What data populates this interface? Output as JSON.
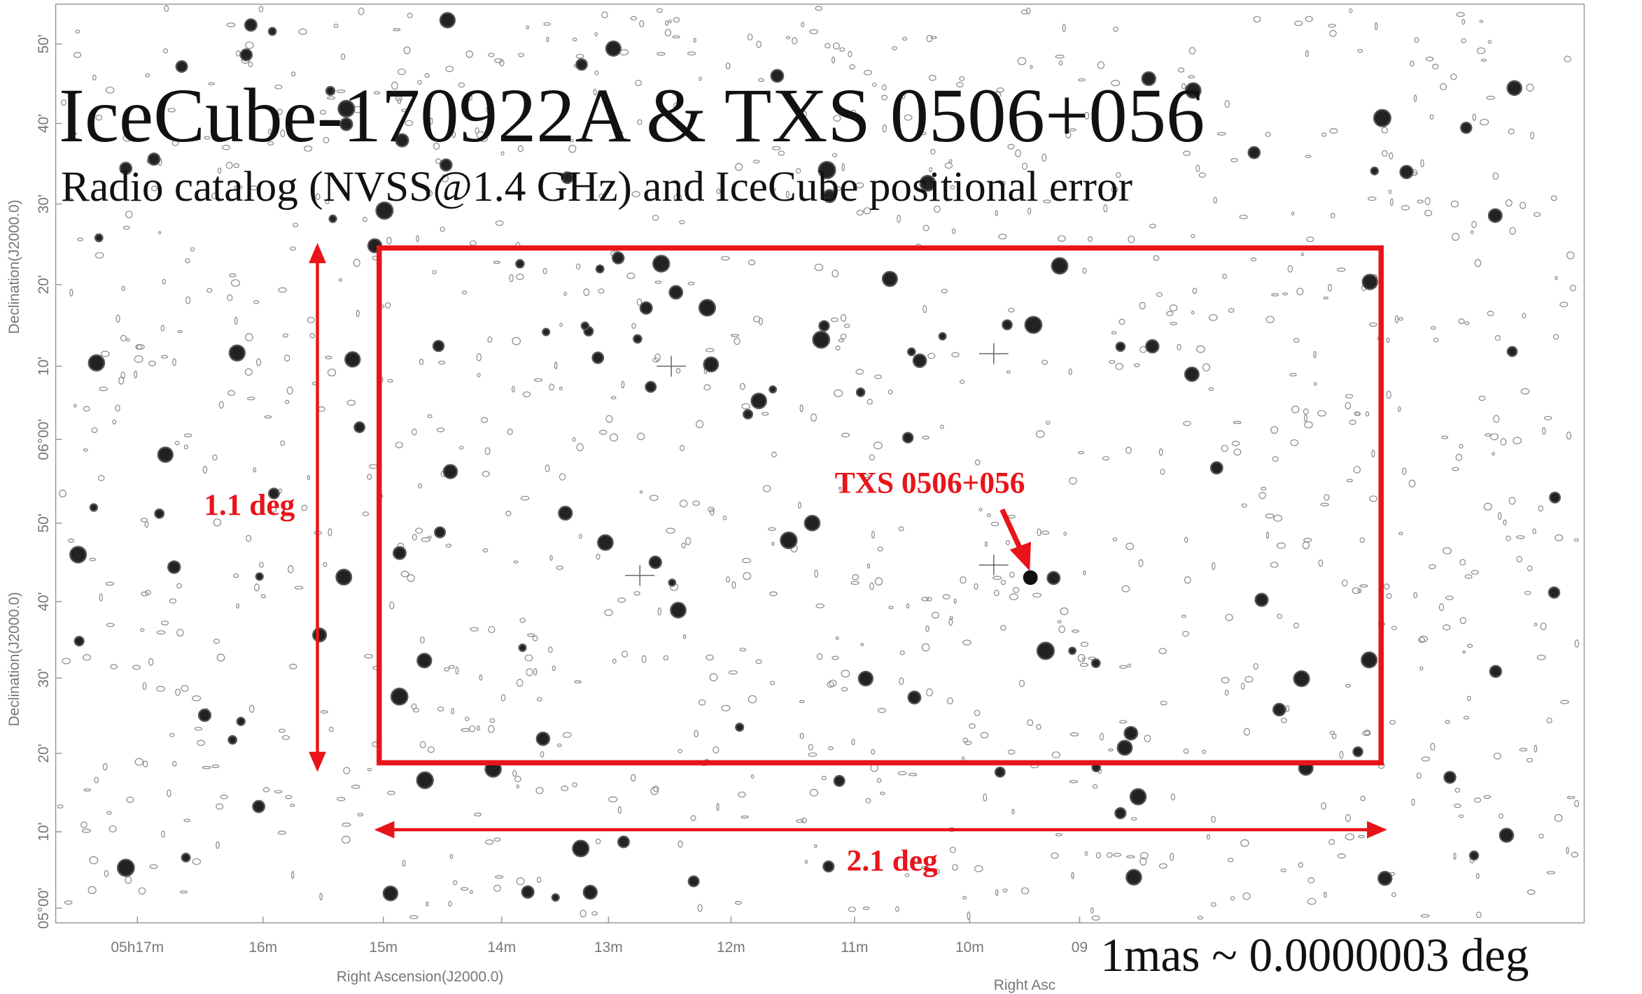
{
  "header": {
    "title": "IceCube-170922A & TXS 0506+056",
    "subtitle": "Radio catalog (NVSS@1.4 GHz) and IceCube positional error"
  },
  "annotations": {
    "height": "1.1 deg",
    "width": "2.1 deg",
    "source": "TXS 0506+056",
    "scale_note": "1mas ~ 0.0000003 deg"
  },
  "axes": {
    "y_titles": [
      "Declination(J2000.0)",
      "Declination(J2000.0)"
    ],
    "y_ticks": [
      "50'",
      "40'",
      "30'",
      "20'",
      "10'",
      "06°00'",
      "50'",
      "40'",
      "30'",
      "20'",
      "10'",
      "05°00'"
    ],
    "x_ticks": [
      "05h17m",
      "16m",
      "15m",
      "14m",
      "13m",
      "12m",
      "11m",
      "10m",
      "09"
    ],
    "x_titles": [
      "Right Ascension(J2000.0)",
      "Right Asc"
    ]
  }
}
